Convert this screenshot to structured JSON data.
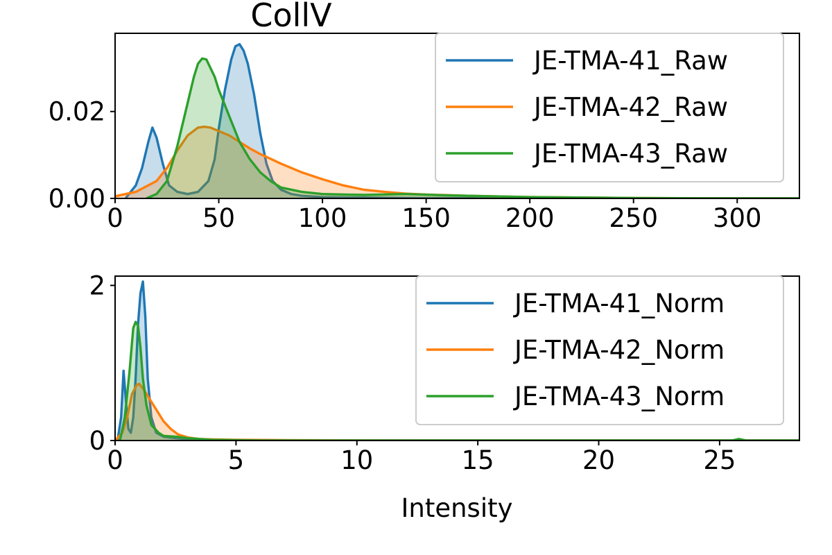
{
  "chart_data": [
    {
      "type": "area",
      "title": "CollV",
      "xlabel": "",
      "ylabel": "",
      "xlim": [
        0,
        330
      ],
      "ylim": [
        0,
        0.038
      ],
      "xticks": [
        0,
        50,
        100,
        150,
        200,
        250,
        300
      ],
      "xtick_labels": [
        "0",
        "50",
        "100",
        "150",
        "200",
        "250",
        "300"
      ],
      "yticks": [
        0,
        0.02
      ],
      "ytick_labels": [
        "0.00",
        "0.02"
      ],
      "legend_position": "top-right",
      "series": [
        {
          "name": "JE-TMA-41_Raw",
          "color": "#1f77b4",
          "x": [
            5,
            10,
            13,
            16,
            18,
            20,
            23,
            26,
            30,
            35,
            40,
            45,
            48,
            50,
            53,
            56,
            58,
            60,
            62,
            64,
            67,
            70,
            73,
            76,
            80,
            85,
            90,
            100,
            120,
            150,
            200,
            250,
            300,
            330
          ],
          "y": [
            0.0,
            0.003,
            0.007,
            0.013,
            0.0163,
            0.014,
            0.008,
            0.003,
            0.0015,
            0.001,
            0.0015,
            0.004,
            0.009,
            0.016,
            0.025,
            0.032,
            0.035,
            0.0355,
            0.034,
            0.031,
            0.024,
            0.015,
            0.008,
            0.004,
            0.002,
            0.001,
            0.0006,
            0.0003,
            0.0002,
            0.0001,
            0.0,
            0.0,
            0.0,
            0.0
          ]
        },
        {
          "name": "JE-TMA-42_Raw",
          "color": "#ff7f0e",
          "x": [
            0,
            10,
            20,
            25,
            30,
            35,
            40,
            43,
            46,
            50,
            55,
            60,
            65,
            70,
            80,
            90,
            100,
            110,
            120,
            130,
            140,
            150,
            170,
            200,
            250,
            300,
            330
          ],
          "y": [
            0.0005,
            0.0015,
            0.004,
            0.007,
            0.011,
            0.0145,
            0.0163,
            0.0165,
            0.0163,
            0.0155,
            0.0145,
            0.013,
            0.0115,
            0.0102,
            0.008,
            0.006,
            0.0044,
            0.003,
            0.002,
            0.0015,
            0.0011,
            0.0009,
            0.0006,
            0.0003,
            0.0001,
            0.0,
            0.0
          ]
        },
        {
          "name": "JE-TMA-43_Raw",
          "color": "#2ca02c",
          "x": [
            15,
            20,
            25,
            30,
            35,
            38,
            40,
            42,
            44,
            46,
            48,
            50,
            55,
            60,
            65,
            70,
            75,
            80,
            90,
            100,
            120,
            140,
            160,
            200,
            250,
            300,
            330
          ],
          "y": [
            0.0,
            0.001,
            0.004,
            0.012,
            0.022,
            0.028,
            0.031,
            0.0322,
            0.032,
            0.03,
            0.028,
            0.025,
            0.019,
            0.013,
            0.009,
            0.006,
            0.004,
            0.0025,
            0.0015,
            0.001,
            0.0008,
            0.001,
            0.0007,
            0.0003,
            0.0001,
            0.0,
            0.0
          ]
        }
      ]
    },
    {
      "type": "area",
      "title": "",
      "xlabel": "Intensity",
      "ylabel": "",
      "xlim": [
        0,
        28.3
      ],
      "ylim": [
        0,
        2.12
      ],
      "xticks": [
        0,
        5,
        10,
        15,
        20,
        25
      ],
      "xtick_labels": [
        "0",
        "5",
        "10",
        "15",
        "20",
        "25"
      ],
      "yticks": [
        0,
        2
      ],
      "ytick_labels": [
        "0",
        "2"
      ],
      "legend_position": "top-right",
      "series": [
        {
          "name": "JE-TMA-41_Norm",
          "color": "#1f77b4",
          "x": [
            0.1,
            0.25,
            0.35,
            0.45,
            0.55,
            0.65,
            0.75,
            0.85,
            0.95,
            1.05,
            1.15,
            1.25,
            1.35,
            1.5,
            1.7,
            2.0,
            2.5,
            3.0,
            4.0,
            6.0,
            28.3
          ],
          "y": [
            0.0,
            0.3,
            0.9,
            0.5,
            0.15,
            0.1,
            0.3,
            0.8,
            1.5,
            1.9,
            2.05,
            1.6,
            0.8,
            0.3,
            0.1,
            0.05,
            0.03,
            0.02,
            0.01,
            0.0,
            0.0
          ]
        },
        {
          "name": "JE-TMA-42_Norm",
          "color": "#ff7f0e",
          "x": [
            0.0,
            0.3,
            0.5,
            0.7,
            0.9,
            1.0,
            1.2,
            1.5,
            1.8,
            2.0,
            2.3,
            2.6,
            3.0,
            3.5,
            4.0,
            5.0,
            7.0,
            10.0,
            15.0,
            28.3
          ],
          "y": [
            0.0,
            0.1,
            0.3,
            0.6,
            0.72,
            0.73,
            0.65,
            0.5,
            0.35,
            0.25,
            0.15,
            0.08,
            0.04,
            0.02,
            0.015,
            0.01,
            0.005,
            0.002,
            0.0,
            0.0
          ]
        },
        {
          "name": "JE-TMA-43_Norm",
          "color": "#2ca02c",
          "x": [
            0.2,
            0.4,
            0.6,
            0.75,
            0.85,
            0.95,
            1.05,
            1.15,
            1.3,
            1.5,
            1.8,
            2.0,
            2.5,
            3.0,
            4.0,
            6.0,
            10.0,
            20.0,
            25.5,
            25.8,
            26.1,
            28.3
          ],
          "y": [
            0.0,
            0.3,
            0.9,
            1.45,
            1.53,
            1.48,
            1.2,
            0.8,
            0.45,
            0.2,
            0.1,
            0.06,
            0.05,
            0.03,
            0.01,
            0.0,
            0.0,
            0.0,
            0.0,
            0.02,
            0.0,
            0.0
          ]
        }
      ]
    }
  ]
}
